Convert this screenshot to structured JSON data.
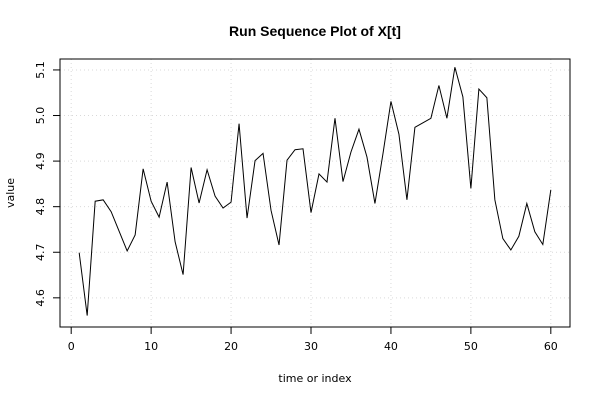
{
  "chart_data": {
    "type": "line",
    "title": "Run Sequence Plot of X[t]",
    "xlabel": "time or index",
    "ylabel": "value",
    "xlim": [
      -1.4,
      62.4
    ],
    "ylim": [
      4.536,
      5.124
    ],
    "xticks": [
      0,
      10,
      20,
      30,
      40,
      50,
      60
    ],
    "yticks": [
      4.6,
      4.7,
      4.8,
      4.9,
      5.0,
      5.1
    ],
    "ytick_labels": [
      "4.6",
      "4.7",
      "4.8",
      "4.9",
      "5.0",
      "5.1"
    ],
    "grid": true,
    "x": [
      1,
      2,
      3,
      4,
      5,
      6,
      7,
      8,
      9,
      10,
      11,
      12,
      13,
      14,
      15,
      16,
      17,
      18,
      19,
      20,
      21,
      22,
      23,
      24,
      25,
      26,
      27,
      28,
      29,
      30,
      31,
      32,
      33,
      34,
      35,
      36,
      37,
      38,
      39,
      40,
      41,
      42,
      43,
      44,
      45,
      46,
      47,
      48,
      49,
      50,
      51,
      52,
      53,
      54,
      55,
      56,
      57,
      58,
      59,
      60
    ],
    "series": [
      {
        "values": [
          4.699,
          4.561,
          4.812,
          4.815,
          4.789,
          4.746,
          4.703,
          4.738,
          4.883,
          4.812,
          4.777,
          4.854,
          4.723,
          4.651,
          4.886,
          4.808,
          4.881,
          4.823,
          4.797,
          4.81,
          4.982,
          4.775,
          4.901,
          4.917,
          4.792,
          4.716,
          4.902,
          4.925,
          4.927,
          4.787,
          4.872,
          4.854,
          4.994,
          4.855,
          4.92,
          4.97,
          4.909,
          4.807,
          4.916,
          5.031,
          4.959,
          4.815,
          4.974,
          4.984,
          4.994,
          5.066,
          4.994,
          5.106,
          5.041,
          4.84,
          5.058,
          5.039,
          4.815,
          4.73,
          4.705,
          4.735,
          4.807,
          4.745,
          4.717,
          4.837
        ]
      }
    ]
  }
}
